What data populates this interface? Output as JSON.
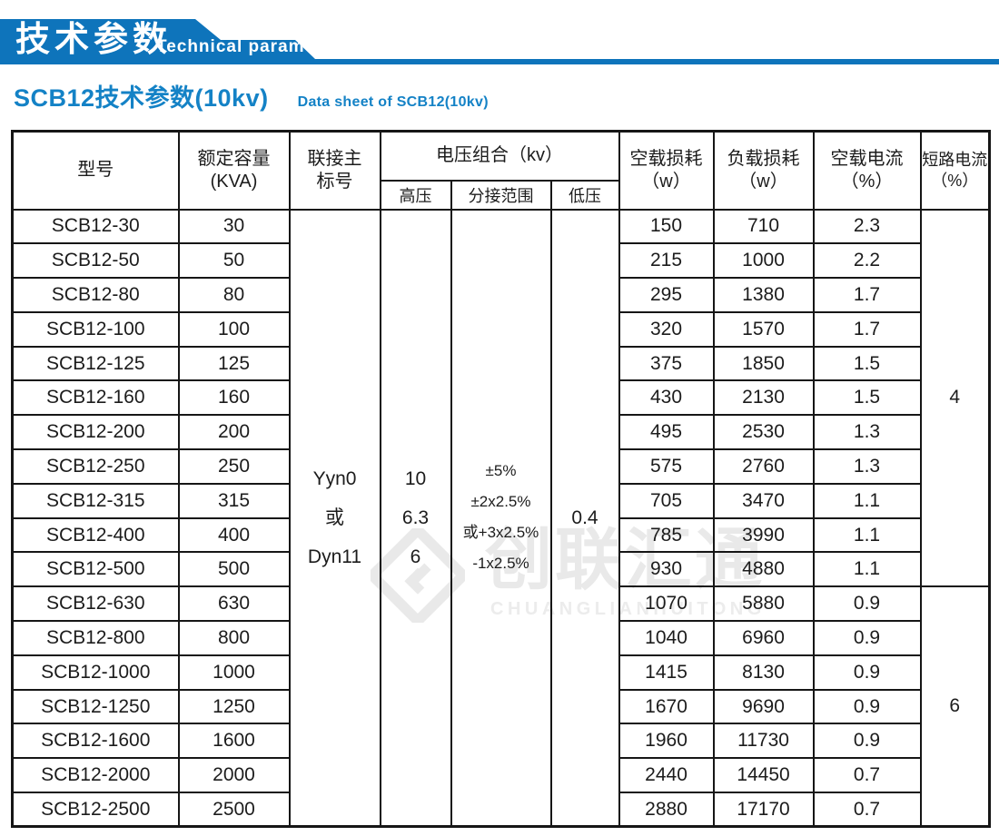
{
  "banner": {
    "title_cn": "技术参数",
    "title_en": "Technical parameter"
  },
  "section": {
    "title": "SCB12技术参数(10kv)",
    "subtitle": "Data sheet of SCB12(10kv)"
  },
  "watermark": {
    "logo_icon": "diamond-logo-icon",
    "text_cn": "创联汇通",
    "text_en": "CHUANGLIANHUITONG"
  },
  "colors": {
    "banner_blue": "#0e74bb",
    "title_blue": "#1482c6",
    "header_cell_blue": "#a9daf2",
    "border_black": "#161616",
    "watermark_gray": "#e9e9e9"
  },
  "table": {
    "headers": {
      "model": "型号",
      "capacity": [
        "额定容量",
        "(KVA)"
      ],
      "connection": [
        "联接主",
        "标号"
      ],
      "voltage_group": "电压组合（kv）",
      "hv": "高压",
      "tap": "分接范围",
      "lv": "低压",
      "no_load_loss": [
        "空载损耗",
        "（w）"
      ],
      "load_loss": [
        "负载损耗",
        "（w）"
      ],
      "no_load_current": [
        "空载电流",
        "（%）"
      ],
      "short_circuit_current": [
        "短路电流",
        "（%）"
      ]
    },
    "merged": {
      "connection_lines": [
        "Yyn0",
        "或",
        "Dyn11"
      ],
      "hv_lines": [
        "10",
        "6.3",
        "6"
      ],
      "tap_lines": [
        "±5%",
        "±2x2.5%",
        "或+3x2.5%",
        "-1x2.5%"
      ],
      "lv": "0.4",
      "short_circuit_groups": [
        {
          "value": "4",
          "row_span": 11
        },
        {
          "value": "6",
          "row_span": 7
        }
      ]
    },
    "rows": [
      {
        "model": "SCB12-30",
        "kva": "30",
        "no_load_loss": "150",
        "load_loss": "710",
        "no_load_current": "2.3"
      },
      {
        "model": "SCB12-50",
        "kva": "50",
        "no_load_loss": "215",
        "load_loss": "1000",
        "no_load_current": "2.2"
      },
      {
        "model": "SCB12-80",
        "kva": "80",
        "no_load_loss": "295",
        "load_loss": "1380",
        "no_load_current": "1.7"
      },
      {
        "model": "SCB12-100",
        "kva": "100",
        "no_load_loss": "320",
        "load_loss": "1570",
        "no_load_current": "1.7"
      },
      {
        "model": "SCB12-125",
        "kva": "125",
        "no_load_loss": "375",
        "load_loss": "1850",
        "no_load_current": "1.5"
      },
      {
        "model": "SCB12-160",
        "kva": "160",
        "no_load_loss": "430",
        "load_loss": "2130",
        "no_load_current": "1.5"
      },
      {
        "model": "SCB12-200",
        "kva": "200",
        "no_load_loss": "495",
        "load_loss": "2530",
        "no_load_current": "1.3"
      },
      {
        "model": "SCB12-250",
        "kva": "250",
        "no_load_loss": "575",
        "load_loss": "2760",
        "no_load_current": "1.3"
      },
      {
        "model": "SCB12-315",
        "kva": "315",
        "no_load_loss": "705",
        "load_loss": "3470",
        "no_load_current": "1.1"
      },
      {
        "model": "SCB12-400",
        "kva": "400",
        "no_load_loss": "785",
        "load_loss": "3990",
        "no_load_current": "1.1"
      },
      {
        "model": "SCB12-500",
        "kva": "500",
        "no_load_loss": "930",
        "load_loss": "4880",
        "no_load_current": "1.1"
      },
      {
        "model": "SCB12-630",
        "kva": "630",
        "no_load_loss": "1070",
        "load_loss": "5880",
        "no_load_current": "0.9"
      },
      {
        "model": "SCB12-800",
        "kva": "800",
        "no_load_loss": "1040",
        "load_loss": "6960",
        "no_load_current": "0.9"
      },
      {
        "model": "SCB12-1000",
        "kva": "1000",
        "no_load_loss": "1415",
        "load_loss": "8130",
        "no_load_current": "0.9"
      },
      {
        "model": "SCB12-1250",
        "kva": "1250",
        "no_load_loss": "1670",
        "load_loss": "9690",
        "no_load_current": "0.9"
      },
      {
        "model": "SCB12-1600",
        "kva": "1600",
        "no_load_loss": "1960",
        "load_loss": "11730",
        "no_load_current": "0.9"
      },
      {
        "model": "SCB12-2000",
        "kva": "2000",
        "no_load_loss": "2440",
        "load_loss": "14450",
        "no_load_current": "0.7"
      },
      {
        "model": "SCB12-2500",
        "kva": "2500",
        "no_load_loss": "2880",
        "load_loss": "17170",
        "no_load_current": "0.7"
      }
    ]
  }
}
